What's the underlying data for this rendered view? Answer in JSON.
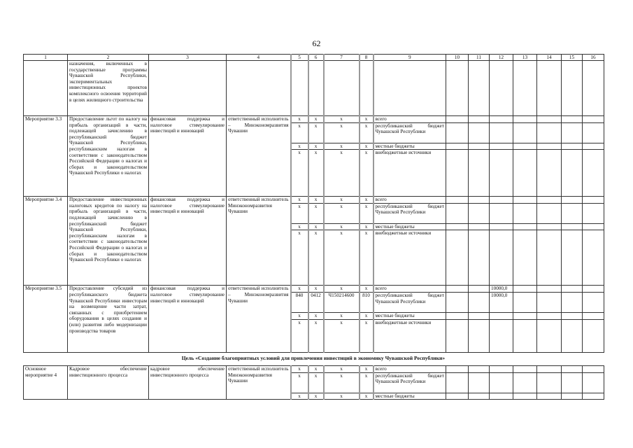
{
  "page_number": "62",
  "header": [
    "1",
    "2",
    "3",
    "4",
    "5",
    "6",
    "7",
    "8",
    "9",
    "10",
    "11",
    "12",
    "13",
    "14",
    "15",
    "16"
  ],
  "continuation": {
    "col2": "назначения, включенных в государственные программы Чувашской Республики, экспериментальных инвестиционных проектов комплексного освоения территорий в целях жилищного строительства"
  },
  "source_labels": [
    "всего",
    "республиканский бюджет Чувашской Республики",
    "местные бюджеты",
    "внебюджетные источники"
  ],
  "blocks": [
    {
      "col1": "Мероприятие 3.3",
      "col2": "Предоставление льгот по налогу на прибыль организаций в части, подлежащей зачислению в республиканский бюджет Чувашской Республики, республиканским налогам в соответствии с законодательством Российской Федерации о налогах и сборах и законодательством Чувашской Республики о налогах",
      "col3": "финансовая поддержка и налоговое стимулирование инвестиций и инноваций",
      "col4": "ответственный исполнитель – Минэкономразвития Чувашии",
      "rows": [
        {
          "codes": [
            "x",
            "x",
            "x",
            "x"
          ],
          "values": [
            "",
            "",
            "",
            "",
            "",
            "",
            ""
          ]
        },
        {
          "codes": [
            "x",
            "x",
            "x",
            "x"
          ],
          "values": [
            "",
            "",
            "",
            "",
            "",
            "",
            ""
          ]
        },
        {
          "codes": [
            "x",
            "x",
            "x",
            "x"
          ],
          "values": [
            "",
            "",
            "",
            "",
            "",
            "",
            ""
          ]
        },
        {
          "codes": [
            "x",
            "x",
            "x",
            "x"
          ],
          "values": [
            "",
            "",
            "",
            "",
            "",
            "",
            ""
          ]
        }
      ]
    },
    {
      "col1": "Мероприятие 3.4",
      "col2": "Предоставление инвестиционных налоговых кредитов по налогу на прибыль организаций в части, подлежащей зачислению в республиканский бюджет Чувашской Республики, республиканским налогам в соответствии с законодательством Российской Федерации о налогах и сборах и законодательством Чувашской Республики о налогах",
      "col3": "финансовая поддержка и налоговое стимулирование инвестиций и инноваций",
      "col4": "ответственный исполнитель Минэкономразвития Чувашии",
      "rows": [
        {
          "codes": [
            "x",
            "x",
            "x",
            "x"
          ],
          "values": [
            "",
            "",
            "",
            "",
            "",
            "",
            ""
          ]
        },
        {
          "codes": [
            "x",
            "x",
            "x",
            "x"
          ],
          "values": [
            "",
            "",
            "",
            "",
            "",
            "",
            ""
          ]
        },
        {
          "codes": [
            "x",
            "x",
            "x",
            "x"
          ],
          "values": [
            "",
            "",
            "",
            "",
            "",
            "",
            ""
          ]
        },
        {
          "codes": [
            "x",
            "x",
            "x",
            "x"
          ],
          "values": [
            "",
            "",
            "",
            "",
            "",
            "",
            ""
          ]
        }
      ]
    },
    {
      "col1": "Мероприятие 3.5",
      "col2": "Предоставление субсидий из республиканского бюджета Чувашской Республики инвесторам на возмещение части затрат, связанных с приобретением оборудования в целях создания и (или) развития либо модернизации производства товаров",
      "col3": "финансовая поддержка и налоговое стимулирование инвестиций и инноваций",
      "col4": "ответственный исполнитель – Минэкономразвития Чувашии",
      "rows": [
        {
          "codes": [
            "x",
            "x",
            "x",
            "x"
          ],
          "values": [
            "",
            "",
            "10000,0",
            "",
            "",
            "",
            ""
          ]
        },
        {
          "codes": [
            "840",
            "0412",
            "Ч150214600",
            "810"
          ],
          "values": [
            "",
            "",
            "10000,0",
            "",
            "",
            "",
            ""
          ]
        },
        {
          "codes": [
            "x",
            "x",
            "x",
            "x"
          ],
          "values": [
            "",
            "",
            "",
            "",
            "",
            "",
            ""
          ]
        },
        {
          "codes": [
            "x",
            "x",
            "x",
            "x"
          ],
          "values": [
            "",
            "",
            "",
            "",
            "",
            "",
            ""
          ]
        }
      ]
    }
  ],
  "goal_heading": "Цель «Создание благоприятных условий для привлечения инвестиций в экономику Чувашской Республики»",
  "block4": {
    "col1": "Основное мероприятие 4",
    "col2": "Кадровое обеспечение инвестиционного процесса",
    "col3": "кадровое обеспечение инвестиционного процесса",
    "col4": "ответственный исполнитель Минэкономразвития Чувашии",
    "rows": [
      {
        "codes": [
          "x",
          "x",
          "x",
          "x"
        ],
        "values": [
          "",
          "",
          "",
          "",
          "",
          "",
          ""
        ]
      },
      {
        "codes": [
          "x",
          "x",
          "x",
          "x"
        ],
        "values": [
          "",
          "",
          "",
          "",
          "",
          "",
          ""
        ]
      },
      {
        "codes": [
          "x",
          "x",
          "x",
          "x"
        ],
        "values": [
          "",
          "",
          "",
          "",
          "",
          "",
          ""
        ]
      }
    ]
  }
}
